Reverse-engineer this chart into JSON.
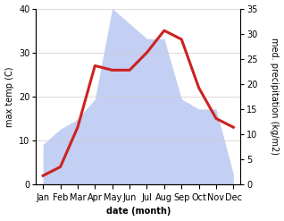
{
  "months": [
    "Jan",
    "Feb",
    "Mar",
    "Apr",
    "May",
    "Jun",
    "Jul",
    "Aug",
    "Sep",
    "Oct",
    "Nov",
    "Dec"
  ],
  "temp": [
    2,
    4,
    13,
    27,
    26,
    26,
    30,
    35,
    33,
    22,
    15,
    13
  ],
  "precip": [
    8,
    11,
    13,
    17,
    35,
    32,
    29,
    29,
    17,
    15,
    15,
    2
  ],
  "temp_color": "#cc2222",
  "precip_color": "#aabbee",
  "precip_edge_color": "#aabbee",
  "temp_ylim": [
    0,
    40
  ],
  "precip_ylim": [
    0,
    35
  ],
  "temp_yticks": [
    0,
    10,
    20,
    30,
    40
  ],
  "precip_yticks": [
    0,
    5,
    10,
    15,
    20,
    25,
    30,
    35
  ],
  "xlabel": "date (month)",
  "ylabel_left": "max temp (C)",
  "ylabel_right": "med. precipitation (kg/m2)",
  "background_color": "#ffffff",
  "line_width": 2.2,
  "tick_fontsize": 7,
  "label_fontsize": 7,
  "xlabel_fontsize": 7
}
